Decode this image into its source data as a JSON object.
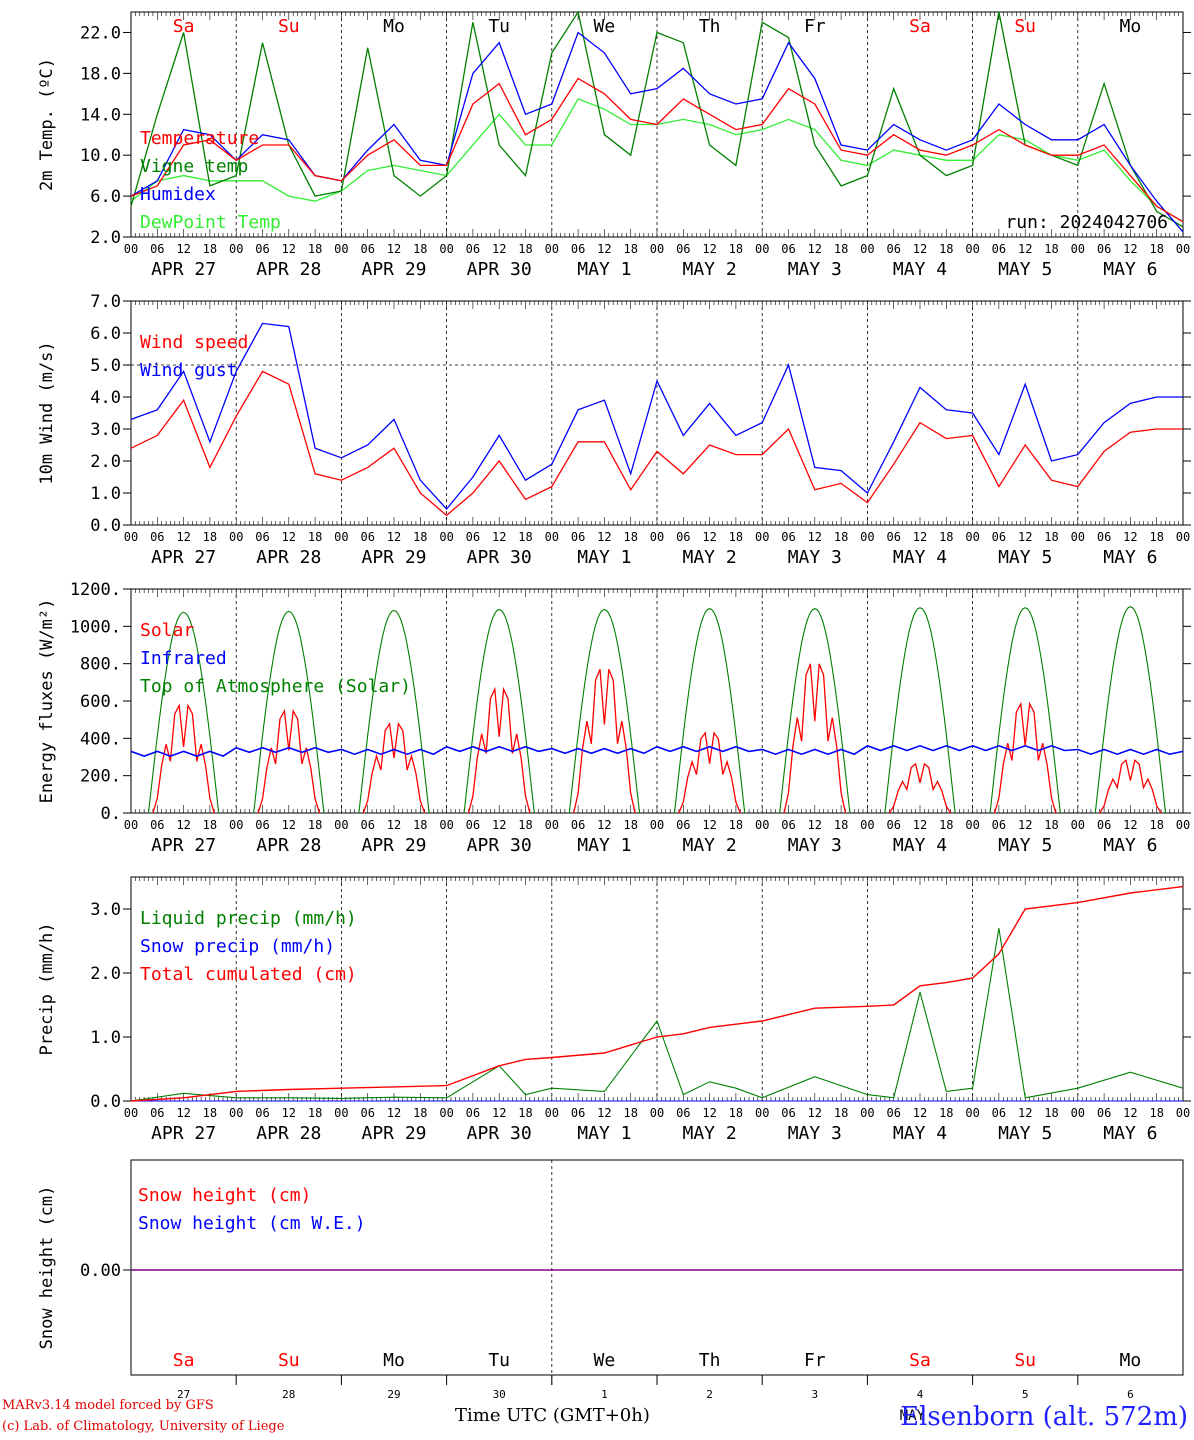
{
  "footer": {
    "credit_line1": "MARv3.14 model forced by GFS",
    "credit_line2": "(c) Lab. of Climatology, University of Liege",
    "axis_title": "Time UTC (GMT+0h)",
    "station": "Elsenborn (alt. 572m)",
    "month_label": "MAY"
  },
  "colors": {
    "red": "#ff0000",
    "blue": "#0000ff",
    "darkgreen": "#008000",
    "lightgreen": "#33ee33",
    "purple": "#800080"
  },
  "time_axis": {
    "hour_ticks": [
      "00",
      "06",
      "12",
      "18"
    ],
    "days": [
      {
        "date": "APR 27",
        "weekday": "Sa",
        "weekend": true,
        "num": "27"
      },
      {
        "date": "APR 28",
        "weekday": "Su",
        "weekend": true,
        "num": "28"
      },
      {
        "date": "APR 29",
        "weekday": "Mo",
        "weekend": false,
        "num": "29"
      },
      {
        "date": "APR 30",
        "weekday": "Tu",
        "weekend": false,
        "num": "30"
      },
      {
        "date": "MAY  1",
        "weekday": "We",
        "weekend": false,
        "num": "1"
      },
      {
        "date": "MAY  2",
        "weekday": "Th",
        "weekend": false,
        "num": "2"
      },
      {
        "date": "MAY  3",
        "weekday": "Fr",
        "weekend": false,
        "num": "3"
      },
      {
        "date": "MAY  4",
        "weekday": "Sa",
        "weekend": true,
        "num": "4"
      },
      {
        "date": "MAY  5",
        "weekday": "Su",
        "weekend": true,
        "num": "5"
      },
      {
        "date": "MAY  6",
        "weekday": "Mo",
        "weekend": false,
        "num": "6"
      }
    ]
  },
  "chart_data": [
    {
      "type": "line",
      "ylabel": "2m Temp. (ºC)",
      "ylim": [
        2,
        24
      ],
      "yticks": [
        "2.0",
        "6.0",
        "10.0",
        "14.0",
        "18.0",
        "22.0"
      ],
      "annotation": "run: 2024042706",
      "x": [
        0,
        6,
        12,
        18,
        24,
        30,
        36,
        42,
        48,
        54,
        60,
        66,
        72,
        78,
        84,
        90,
        96,
        102,
        108,
        114,
        120,
        126,
        132,
        138,
        144,
        150,
        156,
        162,
        168,
        174,
        180,
        186,
        192,
        198,
        204,
        210,
        216,
        222,
        228,
        234,
        240
      ],
      "series": [
        {
          "name": "Temperature",
          "color": "red",
          "values": [
            6.0,
            7.0,
            11.0,
            11.5,
            9.5,
            11.0,
            11.0,
            8.0,
            7.5,
            10.0,
            11.5,
            9.0,
            9.0,
            15.0,
            17.0,
            12.0,
            13.5,
            17.5,
            16.0,
            13.5,
            13.0,
            15.5,
            14.0,
            12.5,
            13.0,
            16.5,
            15.0,
            10.5,
            10.0,
            12.0,
            10.5,
            10.0,
            11.0,
            12.5,
            11.0,
            10.0,
            10.0,
            11.0,
            8.0,
            5.0,
            3.5
          ]
        },
        {
          "name": "Vigne temp",
          "color": "darkgreen",
          "values": [
            5.0,
            14.0,
            22.0,
            7.0,
            8.0,
            21.0,
            11.0,
            6.0,
            6.5,
            20.5,
            8.0,
            6.0,
            8.0,
            23.0,
            11.0,
            8.0,
            20.0,
            24.0,
            12.0,
            10.0,
            22.0,
            21.0,
            11.0,
            9.0,
            23.0,
            21.5,
            11.0,
            7.0,
            8.0,
            16.5,
            10.0,
            8.0,
            9.0,
            24.0,
            11.0,
            10.0,
            9.0,
            17.0,
            9.0,
            4.5,
            3.0
          ]
        },
        {
          "name": "Humidex",
          "color": "blue",
          "values": [
            6.0,
            7.5,
            12.5,
            12.0,
            9.5,
            12.0,
            11.5,
            8.0,
            7.5,
            10.5,
            13.0,
            9.5,
            9.0,
            18.0,
            21.0,
            14.0,
            15.0,
            22.0,
            20.0,
            16.0,
            16.5,
            18.5,
            16.0,
            15.0,
            15.5,
            21.0,
            17.5,
            11.0,
            10.5,
            13.0,
            11.5,
            10.5,
            11.5,
            15.0,
            13.0,
            11.5,
            11.5,
            13.0,
            9.0,
            5.5,
            2.5
          ]
        },
        {
          "name": "DewPoint Temp",
          "color": "lightgreen",
          "values": [
            5.5,
            7.5,
            8.0,
            7.5,
            7.5,
            7.5,
            6.0,
            5.5,
            6.5,
            8.5,
            9.0,
            8.5,
            8.0,
            11.0,
            14.0,
            11.0,
            11.0,
            15.5,
            14.5,
            13.0,
            13.0,
            13.5,
            13.0,
            12.0,
            12.5,
            13.5,
            12.5,
            9.5,
            9.0,
            10.5,
            10.0,
            9.5,
            9.5,
            12.0,
            11.5,
            10.0,
            9.5,
            10.5,
            7.5,
            5.0,
            3.5
          ]
        }
      ]
    },
    {
      "type": "line",
      "ylabel": "10m Wind (m/s)",
      "ylim": [
        0,
        7
      ],
      "yticks": [
        "0.0",
        "1.0",
        "2.0",
        "3.0",
        "4.0",
        "5.0",
        "6.0",
        "7.0"
      ],
      "reference_line": 5.0,
      "x": [
        0,
        6,
        12,
        18,
        24,
        30,
        36,
        42,
        48,
        54,
        60,
        66,
        72,
        78,
        84,
        90,
        96,
        102,
        108,
        114,
        120,
        126,
        132,
        138,
        144,
        150,
        156,
        162,
        168,
        174,
        180,
        186,
        192,
        198,
        204,
        210,
        216,
        222,
        228,
        234,
        240
      ],
      "series": [
        {
          "name": "Wind speed",
          "color": "red",
          "values": [
            2.4,
            2.8,
            3.9,
            1.8,
            3.4,
            4.8,
            4.4,
            1.6,
            1.4,
            1.8,
            2.4,
            1.0,
            0.3,
            1.0,
            2.0,
            0.8,
            1.2,
            2.6,
            2.6,
            1.1,
            2.3,
            1.6,
            2.5,
            2.2,
            2.2,
            3.0,
            1.1,
            1.3,
            0.7,
            1.9,
            3.2,
            2.7,
            2.8,
            1.2,
            2.5,
            1.4,
            1.2,
            2.3,
            2.9,
            3.0,
            3.0
          ]
        },
        {
          "name": "Wind gust",
          "color": "blue",
          "values": [
            3.3,
            3.6,
            4.8,
            2.6,
            4.8,
            6.3,
            6.2,
            2.4,
            2.1,
            2.5,
            3.3,
            1.4,
            0.5,
            1.5,
            2.8,
            1.4,
            1.9,
            3.6,
            3.9,
            1.6,
            4.5,
            2.8,
            3.8,
            2.8,
            3.2,
            5.0,
            1.8,
            1.7,
            1.0,
            2.6,
            4.3,
            3.6,
            3.5,
            2.2,
            4.4,
            2.0,
            2.2,
            3.2,
            3.8,
            4.0,
            4.0
          ]
        }
      ]
    },
    {
      "type": "line",
      "ylabel": "Energy fluxes (W/m²)",
      "ylim": [
        0,
        1200
      ],
      "yticks": [
        "0.",
        "200.",
        "400.",
        "600.",
        "800.",
        "1000.",
        "1200."
      ],
      "series": [
        {
          "name": "Solar",
          "color": "red",
          "daily_peaks": [
            590,
            560,
            490,
            680,
            790,
            440,
            820,
            270,
            600,
            290
          ]
        },
        {
          "name": "Infrared",
          "color": "blue",
          "values_daily": [
            320,
            340,
            330,
            345,
            335,
            345,
            330,
            350,
            350,
            330
          ]
        },
        {
          "name": "Top of Atmosphere (Solar)",
          "color": "darkgreen",
          "daily_peaks": [
            1075,
            1080,
            1085,
            1090,
            1090,
            1095,
            1095,
            1100,
            1100,
            1105
          ]
        }
      ]
    },
    {
      "type": "line",
      "ylabel": "Precip (mm/h)",
      "ylim": [
        0,
        3.5
      ],
      "yticks": [
        "0.0",
        "1.0",
        "2.0",
        "3.0"
      ],
      "x": [
        0,
        12,
        24,
        36,
        48,
        60,
        72,
        84,
        90,
        96,
        108,
        120,
        126,
        132,
        138,
        144,
        156,
        168,
        174,
        180,
        186,
        192,
        198,
        204,
        216,
        228,
        240
      ],
      "series": [
        {
          "name": "Liquid precip (mm/h)",
          "color": "darkgreen",
          "values": [
            0.0,
            0.12,
            0.05,
            0.05,
            0.04,
            0.06,
            0.05,
            0.55,
            0.1,
            0.2,
            0.15,
            1.25,
            0.1,
            0.3,
            0.2,
            0.05,
            0.38,
            0.1,
            0.05,
            1.7,
            0.15,
            0.2,
            2.7,
            0.05,
            0.2,
            0.45,
            0.2
          ]
        },
        {
          "name": "Snow precip (mm/h)",
          "color": "blue",
          "values": [
            0,
            0,
            0,
            0,
            0,
            0,
            0,
            0,
            0,
            0,
            0,
            0,
            0,
            0,
            0,
            0,
            0,
            0,
            0,
            0,
            0,
            0,
            0,
            0,
            0,
            0,
            0
          ]
        },
        {
          "name": "Total cumulated (cm)",
          "color": "red",
          "values": [
            0.0,
            0.05,
            0.15,
            0.18,
            0.2,
            0.22,
            0.24,
            0.55,
            0.65,
            0.68,
            0.75,
            1.0,
            1.05,
            1.15,
            1.2,
            1.25,
            1.45,
            1.48,
            1.5,
            1.8,
            1.85,
            1.92,
            2.3,
            3.0,
            3.1,
            3.25,
            3.35
          ]
        }
      ]
    },
    {
      "type": "line",
      "ylabel": "Snow height (cm)",
      "yticks": [
        "0.00"
      ],
      "series": [
        {
          "name": "Snow height (cm)",
          "color": "red",
          "values": [
            0,
            0
          ]
        },
        {
          "name": "Snow height (cm W.E.)",
          "color": "blue",
          "values": [
            0,
            0
          ]
        }
      ]
    }
  ]
}
